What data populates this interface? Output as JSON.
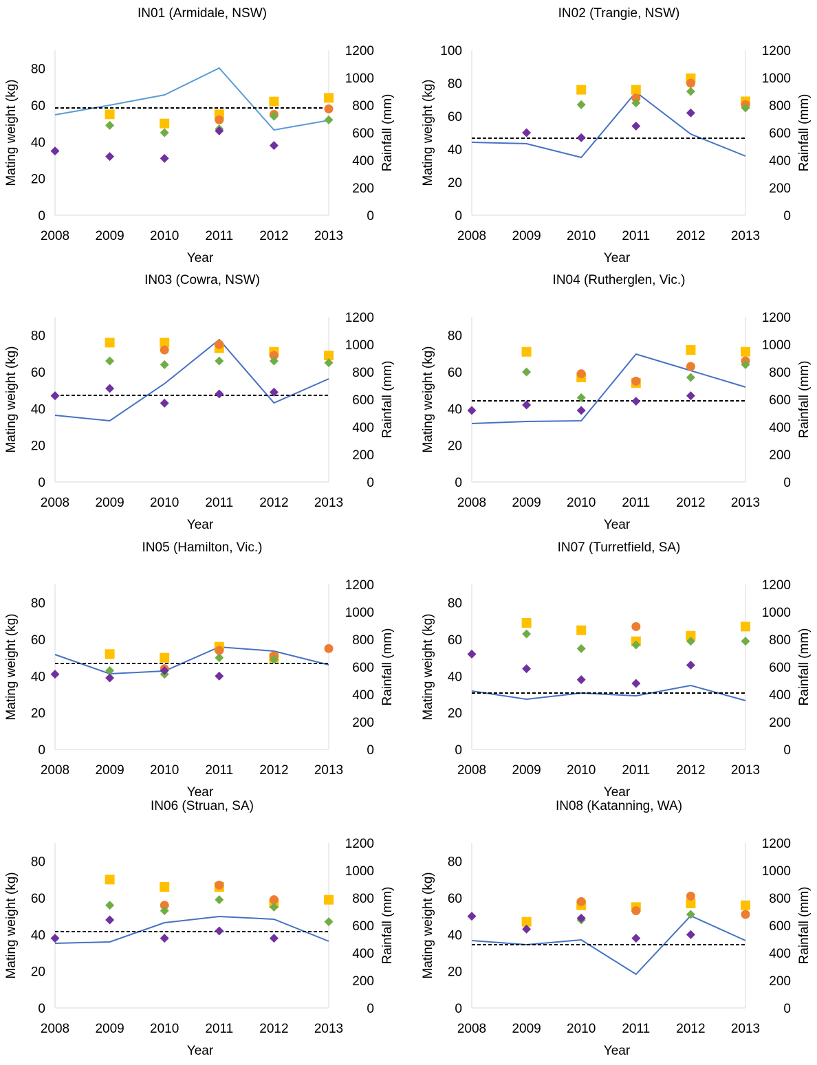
{
  "colors": {
    "rainfall_line": "#4472c4",
    "rainfall_line_in01": "#5b9bd5",
    "reference_line": "#000000",
    "orange": "#ed7d31",
    "yellow": "#ffc000",
    "green": "#70ad47",
    "purple": "#7030a0",
    "axis": "#d9d9d9"
  },
  "chart_data": [
    {
      "type": "scatter",
      "title": "IN01 (Armidale, NSW)",
      "xlabel": "Year",
      "ylabel": "Mating weight (kg)",
      "y2label": "Rainfall (mm)",
      "x": [
        2008,
        2009,
        2010,
        2011,
        2012,
        2013
      ],
      "xticks": [
        "2008",
        "2009",
        "2010",
        "2011",
        "2012",
        "2013"
      ],
      "ylim": [
        0,
        90
      ],
      "yticks": [
        "0",
        "20",
        "40",
        "60",
        "80"
      ],
      "y2lim": [
        0,
        1200
      ],
      "y2ticks": [
        "0",
        "200",
        "400",
        "600",
        "800",
        "1000",
        "1200"
      ],
      "rainfall": [
        730,
        800,
        875,
        1070,
        620,
        690
      ],
      "reference_rainfall": 780,
      "line_color": "#5b9bd5",
      "series": [
        {
          "color": "#ffc000",
          "marker": "square",
          "values": [
            null,
            55,
            50,
            55,
            62,
            64
          ]
        },
        {
          "color": "#ed7d31",
          "marker": "circle",
          "values": [
            null,
            null,
            null,
            52,
            55,
            58
          ]
        },
        {
          "color": "#70ad47",
          "marker": "diamond",
          "values": [
            null,
            49,
            45,
            47,
            54,
            52
          ]
        },
        {
          "color": "#7030a0",
          "marker": "diamond",
          "values": [
            35,
            32,
            31,
            46,
            38,
            null
          ]
        }
      ]
    },
    {
      "type": "scatter",
      "title": "IN02 (Trangie, NSW)",
      "xlabel": "Year",
      "ylabel": "Mating weight (kg)",
      "y2label": "Rainfall (mm)",
      "x": [
        2008,
        2009,
        2010,
        2011,
        2012,
        2013
      ],
      "xticks": [
        "2008",
        "2009",
        "2010",
        "2011",
        "2012",
        "2013"
      ],
      "ylim": [
        0,
        100
      ],
      "yticks": [
        "0",
        "20",
        "40",
        "60",
        "80",
        "100"
      ],
      "y2lim": [
        0,
        1200
      ],
      "y2ticks": [
        "0",
        "200",
        "400",
        "600",
        "800",
        "1000",
        "1200"
      ],
      "rainfall": [
        530,
        520,
        420,
        895,
        590,
        430
      ],
      "reference_rainfall": 560,
      "line_color": "#4472c4",
      "series": [
        {
          "color": "#ffc000",
          "marker": "square",
          "values": [
            null,
            null,
            76,
            76,
            83,
            69
          ]
        },
        {
          "color": "#ed7d31",
          "marker": "circle",
          "values": [
            null,
            null,
            null,
            71,
            80,
            67
          ]
        },
        {
          "color": "#70ad47",
          "marker": "diamond",
          "values": [
            null,
            null,
            67,
            68,
            75,
            65
          ]
        },
        {
          "color": "#7030a0",
          "marker": "diamond",
          "values": [
            null,
            50,
            47,
            54,
            62,
            null
          ]
        }
      ]
    },
    {
      "type": "scatter",
      "title": "IN03 (Cowra, NSW)",
      "xlabel": "Year",
      "ylabel": "Mating weight (kg)",
      "y2label": "Rainfall (mm)",
      "x": [
        2008,
        2009,
        2010,
        2011,
        2012,
        2013
      ],
      "xticks": [
        "2008",
        "2009",
        "2010",
        "2011",
        "2012",
        "2013"
      ],
      "ylim": [
        0,
        90
      ],
      "yticks": [
        "0",
        "20",
        "40",
        "60",
        "80"
      ],
      "y2lim": [
        0,
        1200
      ],
      "y2ticks": [
        "0",
        "200",
        "400",
        "600",
        "800",
        "1000",
        "1200"
      ],
      "rainfall": [
        485,
        445,
        715,
        1035,
        575,
        750
      ],
      "reference_rainfall": 630,
      "line_color": "#4472c4",
      "series": [
        {
          "color": "#ffc000",
          "marker": "square",
          "values": [
            null,
            76,
            76,
            73,
            71,
            69
          ]
        },
        {
          "color": "#ed7d31",
          "marker": "circle",
          "values": [
            null,
            null,
            72,
            75,
            69,
            null
          ]
        },
        {
          "color": "#70ad47",
          "marker": "diamond",
          "values": [
            null,
            66,
            64,
            66,
            66,
            65
          ]
        },
        {
          "color": "#7030a0",
          "marker": "diamond",
          "values": [
            47,
            51,
            43,
            48,
            49,
            null
          ]
        }
      ]
    },
    {
      "type": "scatter",
      "title": "IN04 (Rutherglen, Vic.)",
      "xlabel": "Year",
      "ylabel": "Mating weight (kg)",
      "y2label": "Rainfall (mm)",
      "x": [
        2008,
        2009,
        2010,
        2011,
        2012,
        2013
      ],
      "xticks": [
        "2008",
        "2009",
        "2010",
        "2011",
        "2012",
        "2013"
      ],
      "ylim": [
        0,
        90
      ],
      "yticks": [
        "0",
        "20",
        "40",
        "60",
        "80"
      ],
      "y2lim": [
        0,
        1200
      ],
      "y2ticks": [
        "0",
        "200",
        "400",
        "600",
        "800",
        "1000",
        "1200"
      ],
      "rainfall": [
        425,
        440,
        445,
        930,
        810,
        690
      ],
      "reference_rainfall": 590,
      "line_color": "#4472c4",
      "series": [
        {
          "color": "#ffc000",
          "marker": "square",
          "values": [
            null,
            71,
            57,
            54,
            72,
            71
          ]
        },
        {
          "color": "#ed7d31",
          "marker": "circle",
          "values": [
            null,
            null,
            59,
            55,
            63,
            66
          ]
        },
        {
          "color": "#70ad47",
          "marker": "diamond",
          "values": [
            null,
            60,
            46,
            null,
            57,
            64
          ]
        },
        {
          "color": "#7030a0",
          "marker": "diamond",
          "values": [
            39,
            42,
            39,
            44,
            47,
            null
          ]
        }
      ]
    },
    {
      "type": "scatter",
      "title": "IN05 (Hamilton, Vic.)",
      "xlabel": "Year",
      "ylabel": "Mating weight (kg)",
      "y2label": "Rainfall (mm)",
      "x": [
        2008,
        2009,
        2010,
        2011,
        2012,
        2013
      ],
      "xticks": [
        "2008",
        "2009",
        "2010",
        "2011",
        "2012",
        "2013"
      ],
      "ylim": [
        0,
        90
      ],
      "yticks": [
        "0",
        "20",
        "40",
        "60",
        "80"
      ],
      "y2lim": [
        0,
        1200
      ],
      "y2ticks": [
        "0",
        "200",
        "400",
        "600",
        "800",
        "1000",
        "1200"
      ],
      "rainfall": [
        690,
        550,
        570,
        745,
        715,
        615
      ],
      "reference_rainfall": 625,
      "line_color": "#4472c4",
      "series": [
        {
          "color": "#ffc000",
          "marker": "square",
          "values": [
            null,
            52,
            50,
            56,
            50,
            null
          ]
        },
        {
          "color": "#ed7d31",
          "marker": "circle",
          "values": [
            null,
            null,
            44,
            54,
            51,
            55
          ]
        },
        {
          "color": "#70ad47",
          "marker": "diamond",
          "values": [
            null,
            43,
            41,
            50,
            49,
            null
          ]
        },
        {
          "color": "#7030a0",
          "marker": "diamond",
          "values": [
            41,
            39,
            43,
            40,
            null,
            null
          ]
        }
      ]
    },
    {
      "type": "scatter",
      "title": "IN07 (Turretfield, SA)",
      "xlabel": "Year",
      "ylabel": "Mating weight (kg)",
      "y2label": "Rainfall (mm)",
      "x": [
        2008,
        2009,
        2010,
        2011,
        2012,
        2013
      ],
      "xticks": [
        "2008",
        "2009",
        "2010",
        "2011",
        "2012",
        "2013"
      ],
      "ylim": [
        0,
        90
      ],
      "yticks": [
        "0",
        "20",
        "40",
        "60",
        "80"
      ],
      "y2lim": [
        0,
        1200
      ],
      "y2ticks": [
        "0",
        "200",
        "400",
        "600",
        "800",
        "1000",
        "1200"
      ],
      "rainfall": [
        425,
        365,
        410,
        390,
        465,
        355
      ],
      "reference_rainfall": 410,
      "line_color": "#4472c4",
      "series": [
        {
          "color": "#ffc000",
          "marker": "square",
          "values": [
            null,
            69,
            65,
            59,
            62,
            67
          ]
        },
        {
          "color": "#ed7d31",
          "marker": "circle",
          "values": [
            null,
            null,
            null,
            67,
            null,
            null
          ]
        },
        {
          "color": "#70ad47",
          "marker": "diamond",
          "values": [
            null,
            63,
            55,
            57,
            59,
            59
          ]
        },
        {
          "color": "#7030a0",
          "marker": "diamond",
          "values": [
            52,
            44,
            38,
            36,
            46,
            null
          ]
        }
      ]
    },
    {
      "type": "scatter",
      "title": "IN06 (Struan, SA)",
      "xlabel": "Year",
      "ylabel": "Mating weight (kg)",
      "y2label": "Rainfall (mm)",
      "x": [
        2008,
        2009,
        2010,
        2011,
        2012,
        2013
      ],
      "xticks": [
        "2008",
        "2009",
        "2010",
        "2011",
        "2012",
        "2013"
      ],
      "ylim": [
        0,
        90
      ],
      "yticks": [
        "0",
        "20",
        "40",
        "60",
        "80"
      ],
      "y2lim": [
        0,
        1200
      ],
      "y2ticks": [
        "0",
        "200",
        "400",
        "600",
        "800",
        "1000",
        "1200"
      ],
      "rainfall": [
        470,
        480,
        620,
        665,
        645,
        485
      ],
      "reference_rainfall": 555,
      "line_color": "#4472c4",
      "series": [
        {
          "color": "#ffc000",
          "marker": "square",
          "values": [
            null,
            70,
            66,
            66,
            57,
            59
          ]
        },
        {
          "color": "#ed7d31",
          "marker": "circle",
          "values": [
            null,
            null,
            56,
            67,
            59,
            null
          ]
        },
        {
          "color": "#70ad47",
          "marker": "diamond",
          "values": [
            null,
            56,
            53,
            59,
            55,
            47
          ]
        },
        {
          "color": "#7030a0",
          "marker": "diamond",
          "values": [
            38,
            48,
            38,
            42,
            38,
            null
          ]
        }
      ]
    },
    {
      "type": "scatter",
      "title": "IN08 (Katanning, WA)",
      "xlabel": "Year",
      "ylabel": "Mating weight (kg)",
      "y2label": "Rainfall (mm)",
      "x": [
        2008,
        2009,
        2010,
        2011,
        2012,
        2013
      ],
      "xticks": [
        "2008",
        "2009",
        "2010",
        "2011",
        "2012",
        "2013"
      ],
      "ylim": [
        0,
        90
      ],
      "yticks": [
        "0",
        "20",
        "40",
        "60",
        "80"
      ],
      "y2lim": [
        0,
        1200
      ],
      "y2ticks": [
        "0",
        "200",
        "400",
        "600",
        "800",
        "1000",
        "1200"
      ],
      "rainfall": [
        490,
        460,
        495,
        245,
        670,
        490
      ],
      "reference_rainfall": 460,
      "line_color": "#4472c4",
      "series": [
        {
          "color": "#ffc000",
          "marker": "square",
          "values": [
            null,
            47,
            56,
            55,
            57,
            56
          ]
        },
        {
          "color": "#ed7d31",
          "marker": "circle",
          "values": [
            null,
            null,
            58,
            53,
            61,
            51
          ]
        },
        {
          "color": "#70ad47",
          "marker": "diamond",
          "values": [
            null,
            null,
            48,
            null,
            51,
            null
          ]
        },
        {
          "color": "#7030a0",
          "marker": "diamond",
          "values": [
            50,
            43,
            49,
            38,
            40,
            null
          ]
        }
      ]
    }
  ]
}
